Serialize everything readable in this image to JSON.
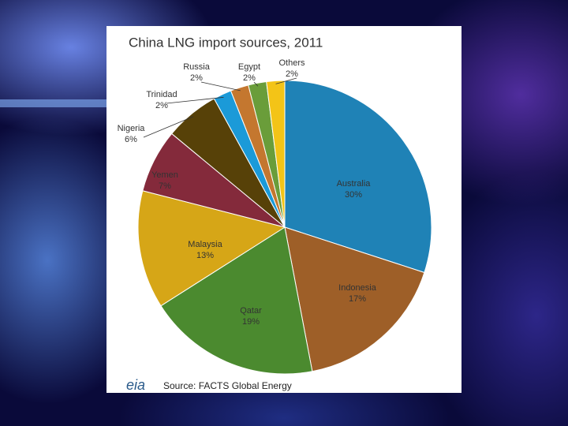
{
  "chart_data": {
    "type": "pie",
    "title": "China LNG import sources, 2011",
    "categories": [
      "Australia",
      "Indonesia",
      "Qatar",
      "Malaysia",
      "Yemen",
      "Nigeria",
      "Trinidad",
      "Russia",
      "Egypt",
      "Others"
    ],
    "values": [
      30,
      17,
      19,
      13,
      7,
      6,
      2,
      2,
      2,
      2
    ],
    "value_labels": [
      "30%",
      "17%",
      "19%",
      "13%",
      "7%",
      "6%",
      "2%",
      "2%",
      "2%",
      "2%"
    ],
    "colors": [
      "#1f82b6",
      "#9e5f28",
      "#4b8a2f",
      "#d6a617",
      "#842a3b",
      "#574108",
      "#1b9ad8",
      "#c4772f",
      "#6a9d3a",
      "#f3c417"
    ],
    "logo_text": "eia",
    "source": "Source: FACTS Global Energy"
  }
}
